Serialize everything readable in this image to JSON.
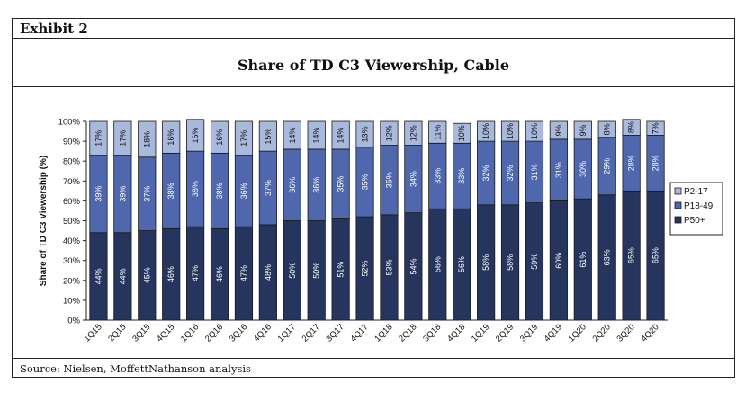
{
  "exhibit": {
    "label": "Exhibit 2",
    "source": "Source: Nielsen, MoffettNathanson analysis"
  },
  "colors": {
    "P50+": "#26355e",
    "P18-49": "#4f67ad",
    "P2-17": "#a9b9dc"
  },
  "chart_data": {
    "type": "bar",
    "stacked": true,
    "title": "Share of TD C3 Viewership, Cable",
    "xlabel": "",
    "ylabel": "Share of TD C3 Viewership (%)",
    "ylim": [
      0,
      100
    ],
    "yticks": [
      "0%",
      "10%",
      "20%",
      "30%",
      "40%",
      "50%",
      "60%",
      "70%",
      "80%",
      "90%",
      "100%"
    ],
    "legend_position": "right",
    "categories": [
      "1Q15",
      "2Q15",
      "3Q15",
      "4Q15",
      "1Q16",
      "2Q16",
      "3Q16",
      "4Q16",
      "1Q17",
      "2Q17",
      "3Q17",
      "4Q17",
      "1Q18",
      "2Q18",
      "3Q18",
      "4Q18",
      "1Q19",
      "2Q19",
      "3Q19",
      "4Q19",
      "1Q20",
      "2Q20",
      "3Q20",
      "4Q20"
    ],
    "series": [
      {
        "name": "P50+",
        "values": [
          44,
          44,
          45,
          46,
          47,
          46,
          47,
          48,
          50,
          50,
          51,
          52,
          53,
          54,
          56,
          56,
          58,
          58,
          59,
          60,
          61,
          63,
          65,
          65
        ]
      },
      {
        "name": "P18-49",
        "values": [
          39,
          39,
          37,
          38,
          38,
          38,
          36,
          37,
          36,
          36,
          35,
          35,
          35,
          34,
          33,
          33,
          32,
          32,
          31,
          31,
          30,
          29,
          28,
          28
        ]
      },
      {
        "name": "P2-17",
        "values": [
          17,
          17,
          18,
          16,
          16,
          16,
          17,
          15,
          14,
          14,
          14,
          13,
          12,
          12,
          11,
          10,
          10,
          10,
          10,
          9,
          9,
          8,
          8,
          7
        ]
      }
    ],
    "legend_order": [
      "P2-17",
      "P18-49",
      "P50+"
    ]
  }
}
